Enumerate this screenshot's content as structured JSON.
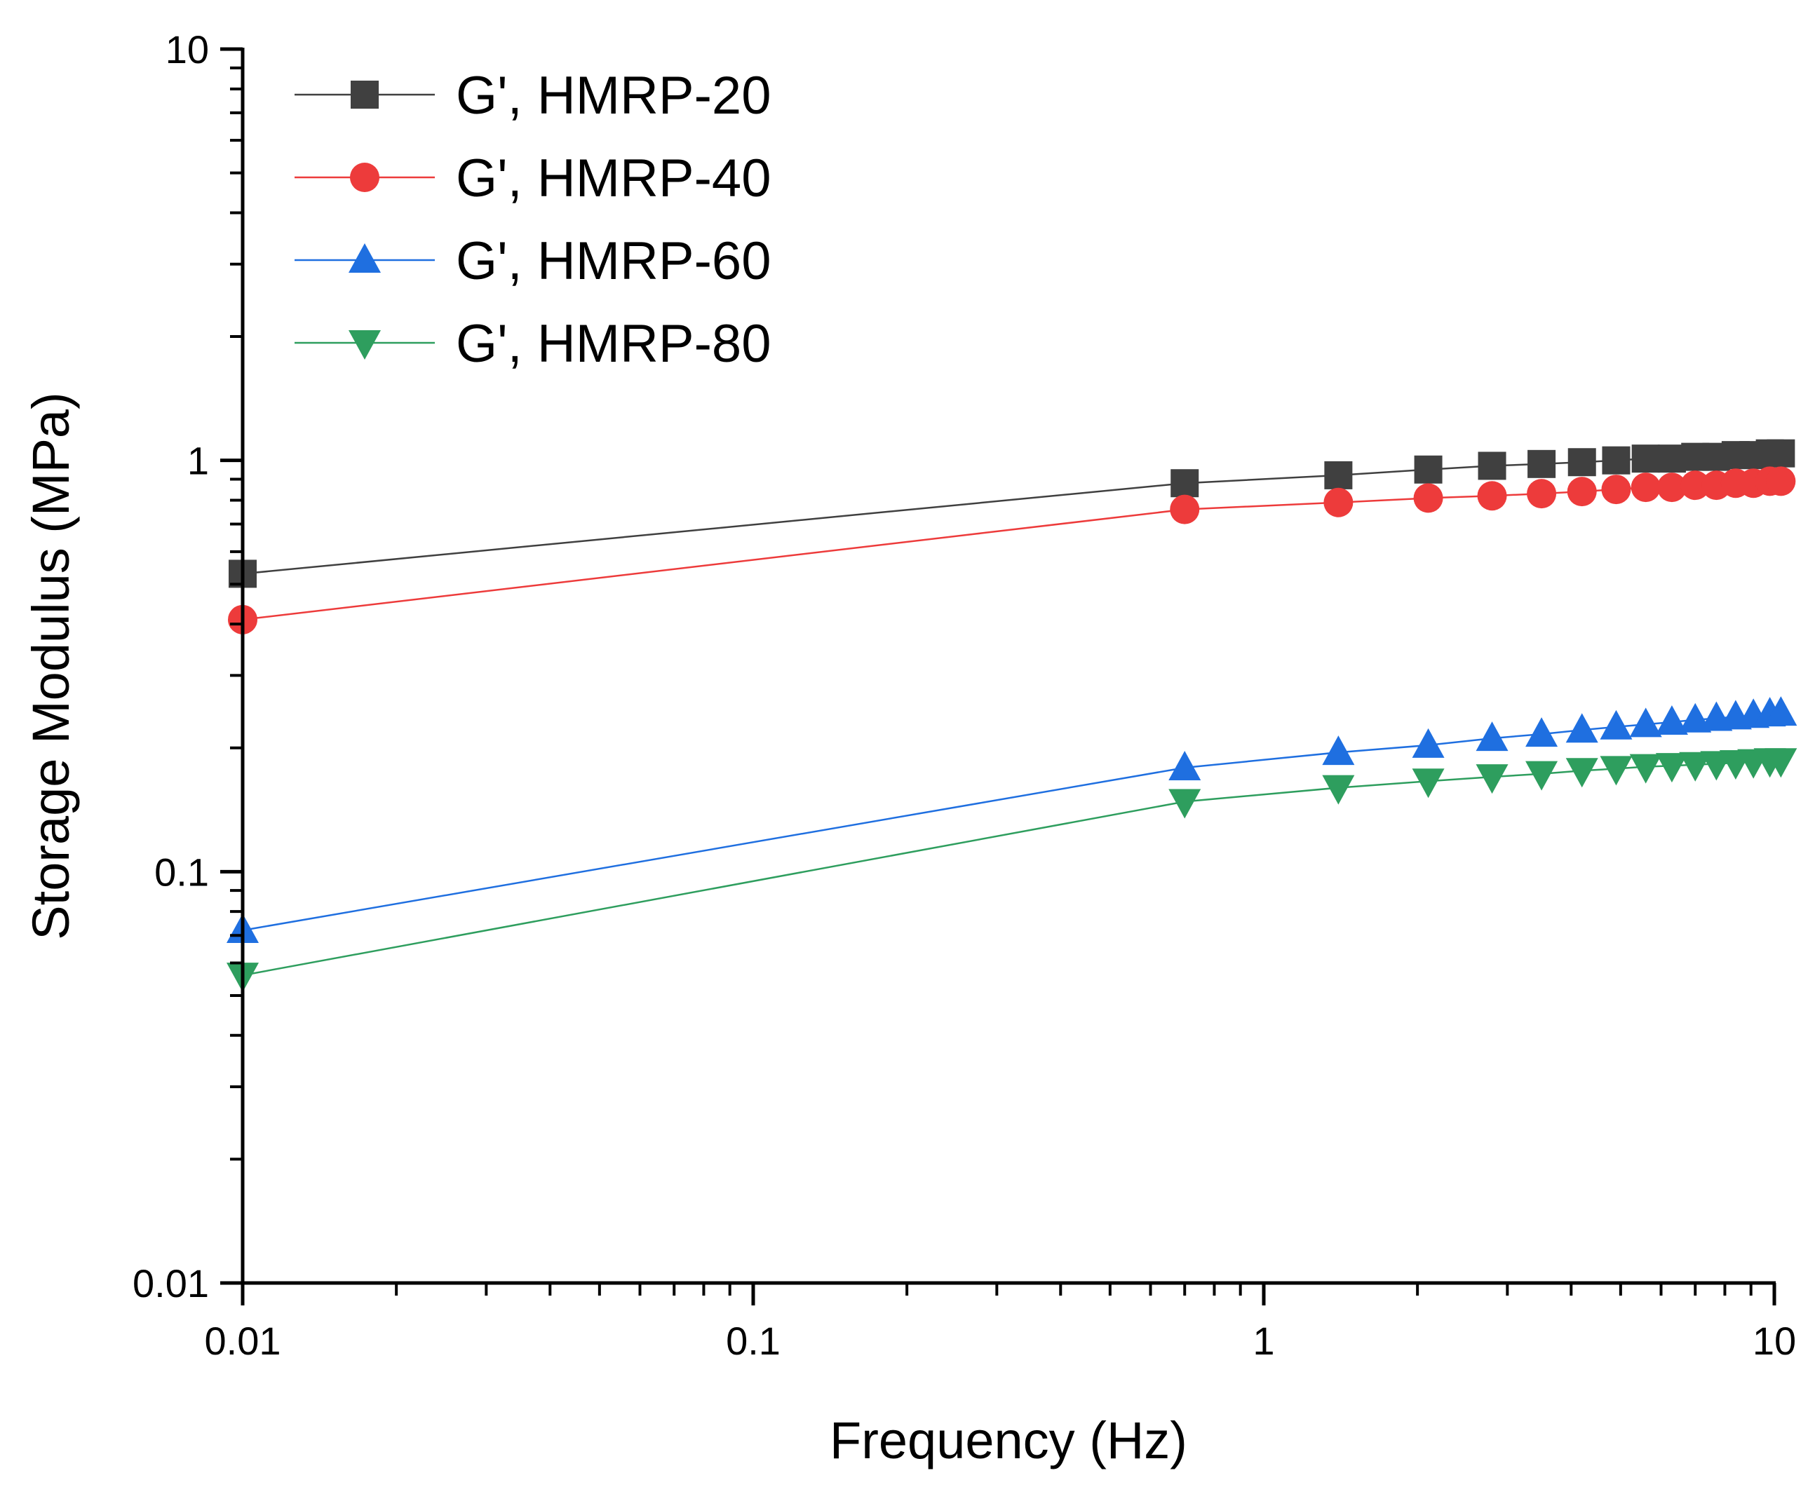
{
  "chart_data": {
    "type": "scatter",
    "x_scale": "log",
    "y_scale": "log",
    "xlabel": "Frequency (Hz)",
    "ylabel": "Storage Modulus (MPa)",
    "xlim": [
      0.01,
      10
    ],
    "ylim": [
      0.01,
      10
    ],
    "x_ticks": [
      {
        "value": 0.01,
        "label": "0.01"
      },
      {
        "value": 0.1,
        "label": "0.1"
      },
      {
        "value": 1,
        "label": "1"
      },
      {
        "value": 10,
        "label": "10"
      }
    ],
    "y_ticks": [
      {
        "value": 0.01,
        "label": "0.01"
      },
      {
        "value": 0.1,
        "label": "0.1"
      },
      {
        "value": 1,
        "label": "1"
      },
      {
        "value": 10,
        "label": "10"
      }
    ],
    "grid": false,
    "legend_position": "top-left",
    "x": [
      0.01,
      0.7,
      1.4,
      2.1,
      2.8,
      3.5,
      4.2,
      4.9,
      5.6,
      6.3,
      7.0,
      7.7,
      8.4,
      9.1,
      9.8,
      10.3
    ],
    "series": [
      {
        "name": "G', HMRP-20",
        "marker": "square",
        "color": "#404040",
        "values": [
          0.53,
          0.88,
          0.92,
          0.95,
          0.97,
          0.98,
          0.99,
          1.0,
          1.01,
          1.01,
          1.02,
          1.02,
          1.03,
          1.03,
          1.04,
          1.04
        ]
      },
      {
        "name": "G', HMRP-40",
        "marker": "circle",
        "color": "#ed3b3b",
        "values": [
          0.41,
          0.76,
          0.79,
          0.81,
          0.82,
          0.83,
          0.84,
          0.85,
          0.86,
          0.86,
          0.87,
          0.87,
          0.88,
          0.88,
          0.89,
          0.89
        ]
      },
      {
        "name": "G', HMRP-60",
        "marker": "triangle-up",
        "color": "#1f6fe0",
        "values": [
          0.072,
          0.179,
          0.195,
          0.203,
          0.211,
          0.216,
          0.221,
          0.225,
          0.228,
          0.231,
          0.234,
          0.236,
          0.238,
          0.24,
          0.242,
          0.243
        ]
      },
      {
        "name": "G', HMRP-80",
        "marker": "triangle-down",
        "color": "#2e9e5e",
        "values": [
          0.056,
          0.148,
          0.16,
          0.166,
          0.17,
          0.173,
          0.176,
          0.178,
          0.18,
          0.181,
          0.182,
          0.183,
          0.184,
          0.185,
          0.186,
          0.186
        ]
      }
    ]
  }
}
